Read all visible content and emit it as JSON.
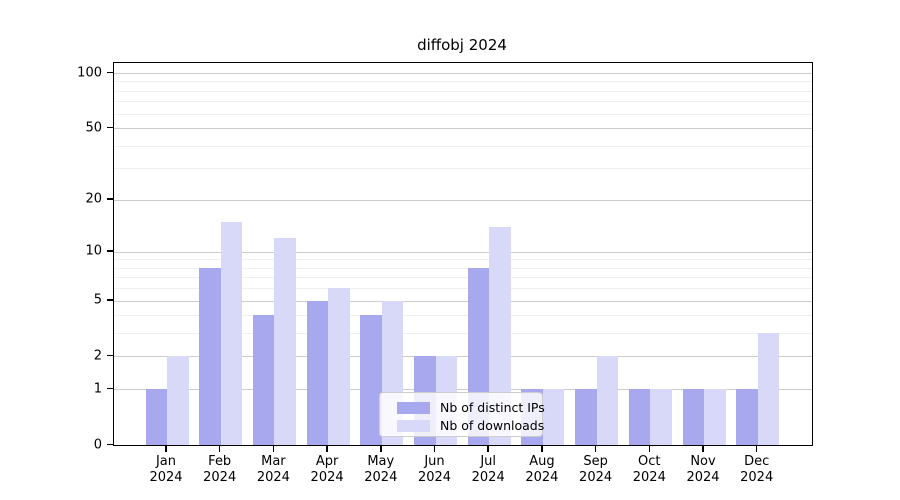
{
  "title": "diffobj 2024",
  "chart_data": {
    "type": "bar",
    "title": "diffobj 2024",
    "categories": [
      "Jan 2024",
      "Feb 2024",
      "Mar 2024",
      "Apr 2024",
      "May 2024",
      "Jun 2024",
      "Jul 2024",
      "Aug 2024",
      "Sep 2024",
      "Oct 2024",
      "Nov 2024",
      "Dec 2024"
    ],
    "series": [
      {
        "name": "Nb of distinct IPs",
        "color": "#a8a8ef",
        "values": [
          1,
          8,
          4,
          5,
          4,
          2,
          8,
          1,
          1,
          1,
          1,
          1
        ]
      },
      {
        "name": "Nb of downloads",
        "color": "#d8d8f8",
        "values": [
          2,
          15,
          12,
          6,
          5,
          2,
          14,
          1,
          2,
          1,
          1,
          3
        ]
      }
    ],
    "xlabel": "",
    "ylabel": "",
    "yscale": "log1p",
    "ylim": [
      0,
      113
    ],
    "yticks_major": [
      0,
      1,
      2,
      5,
      10,
      20,
      50,
      100
    ],
    "yticks_minor": [
      3,
      4,
      6,
      7,
      8,
      9,
      30,
      40,
      60,
      70,
      80,
      90
    ],
    "grid": true,
    "legend_position": "lower center inside plot"
  },
  "colors": {
    "bar_ips": "#a8a8ef",
    "bar_downloads": "#d8d8f8",
    "grid_major": "#cccccc",
    "grid_minor": "#efefef",
    "spine": "#000000",
    "background": "#ffffff",
    "text": "#000000"
  }
}
